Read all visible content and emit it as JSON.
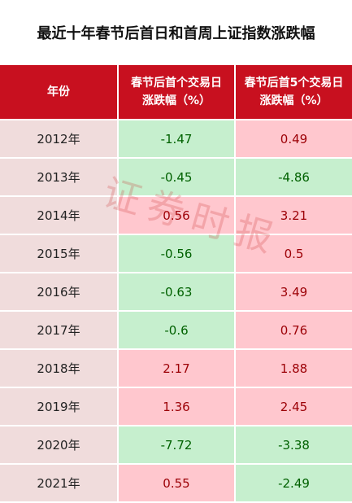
{
  "title": "最近十年春节后首日和首周上证指数涨跌幅",
  "table": {
    "headers": [
      "年份",
      "春节后首个交易日\n涨跌幅（%）",
      "春节后首5个交易日\n涨跌幅（%）"
    ],
    "rows": [
      {
        "year": "2012年",
        "first_day": "-1.47",
        "first_week": "0.49"
      },
      {
        "year": "2013年",
        "first_day": "-0.45",
        "first_week": "-4.86"
      },
      {
        "year": "2014年",
        "first_day": "0.56",
        "first_week": "3.21"
      },
      {
        "year": "2015年",
        "first_day": "-0.56",
        "first_week": "0.5"
      },
      {
        "year": "2016年",
        "first_day": "-0.63",
        "first_week": "3.49"
      },
      {
        "year": "2017年",
        "first_day": "-0.6",
        "first_week": "0.76"
      },
      {
        "year": "2018年",
        "first_day": "2.17",
        "first_week": "1.88"
      },
      {
        "year": "2019年",
        "first_day": "1.36",
        "first_week": "2.45"
      },
      {
        "year": "2020年",
        "first_day": "-7.72",
        "first_week": "-3.38"
      },
      {
        "year": "2021年",
        "first_day": "0.55",
        "first_week": "-2.49"
      }
    ]
  },
  "watermark": "证券时报",
  "colors": {
    "header_bg": "#c8101f",
    "positive_bg": "#ffc7ce",
    "positive_text": "#9c0006",
    "negative_bg": "#c6efce",
    "negative_text": "#006100",
    "year_bg": "#f0dcdc"
  }
}
